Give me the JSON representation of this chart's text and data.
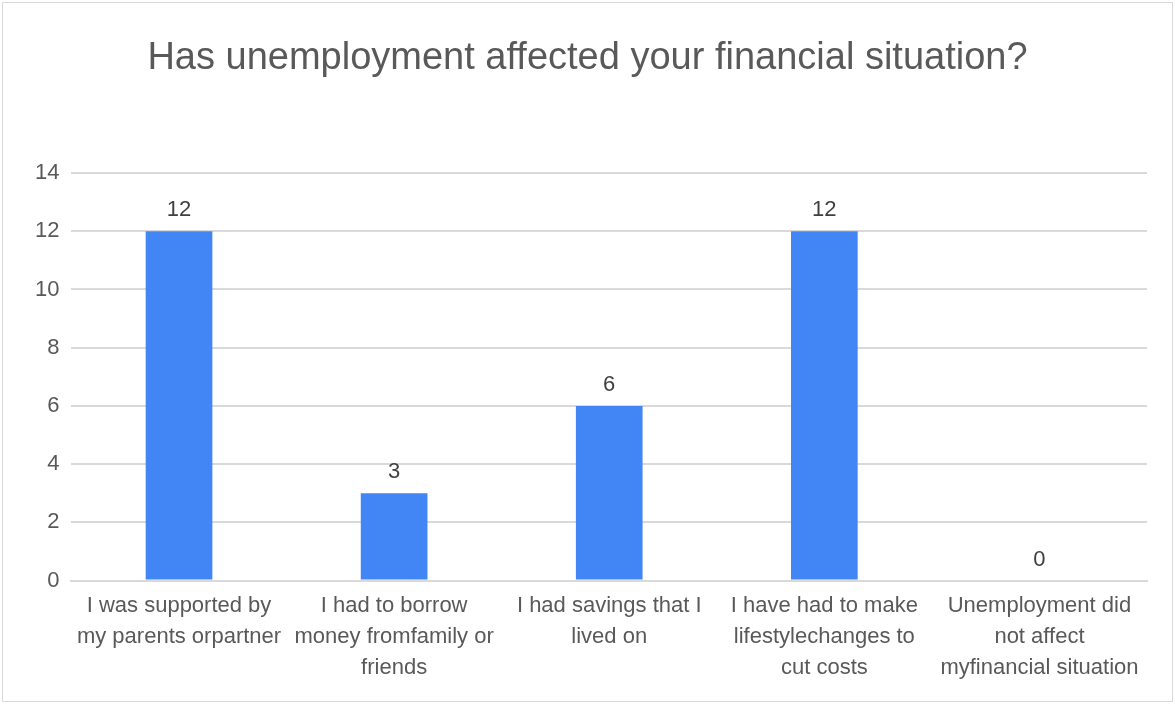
{
  "chart_data": {
    "type": "bar",
    "title": "Has unemployment affected your financial situation?",
    "categories": [
      "I was supported by my parents orpartner",
      "I had to borrow money fromfamily or friends",
      "I had savings that I lived on",
      "I have had to make lifestylechanges to cut costs",
      "Unemployment did not affect myfinancial situation"
    ],
    "values": [
      12,
      3,
      6,
      12,
      0
    ],
    "color": "#4285f4",
    "ylim": [
      0,
      14
    ],
    "yticks": [
      0,
      2,
      4,
      6,
      8,
      10,
      12,
      14
    ],
    "grid": "y",
    "data_labels": true,
    "legend": false
  }
}
